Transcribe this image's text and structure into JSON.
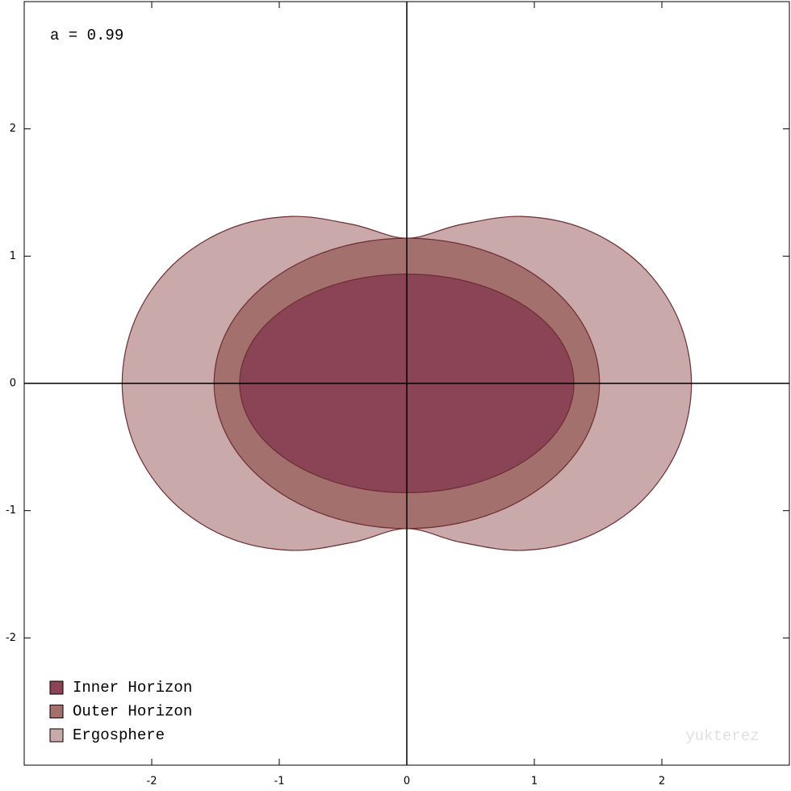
{
  "chart_data": {
    "type": "region",
    "annotation": "a = 0.99",
    "watermark": "yukterez",
    "xlim": [
      -3,
      3
    ],
    "ylim": [
      -3,
      3
    ],
    "xticks": [
      -2,
      -1,
      0,
      1,
      2
    ],
    "yticks": [
      -2,
      -1,
      0,
      1,
      2
    ],
    "legend": "lower left",
    "series": [
      {
        "name": "Ergosphere",
        "color": "#c9a9a9",
        "x": [
          2.232,
          2.127,
          1.832,
          1.399,
          0.905,
          0.421,
          0,
          -0.421,
          -0.905,
          -1.399,
          -1.832,
          -2.127,
          -2.232,
          -2.127,
          -1.832,
          -1.399,
          -0.905,
          -0.421,
          0,
          0.421,
          0.905,
          1.399,
          1.832,
          2.127
        ],
        "y": [
          0,
          0.509,
          0.934,
          1.212,
          1.312,
          1.248,
          1.141,
          1.248,
          1.312,
          1.212,
          0.934,
          0.509,
          0,
          -0.509,
          -0.934,
          -1.212,
          -1.312,
          -1.248,
          -1.141,
          -1.248,
          -1.312,
          -1.212,
          -0.934,
          -0.509
        ]
      },
      {
        "name": "Outer Horizon",
        "color": "#a4706e",
        "x": [
          1.511,
          1.46,
          1.309,
          1.068,
          0.756,
          0.391,
          0,
          -0.391,
          -0.756,
          -1.068,
          -1.309,
          -1.46,
          -1.511,
          -1.46,
          -1.309,
          -1.068,
          -0.756,
          -0.391,
          0,
          0.391,
          0.756,
          1.068,
          1.309,
          1.46
        ],
        "y": [
          0,
          0.295,
          0.571,
          0.807,
          0.988,
          1.102,
          1.141,
          1.102,
          0.988,
          0.807,
          0.571,
          0.295,
          0,
          -0.295,
          -0.571,
          -0.807,
          -0.988,
          -1.102,
          -1.141,
          -1.102,
          -0.988,
          -0.807,
          -0.571,
          -0.295
        ]
      },
      {
        "name": "Inner Horizon",
        "color": "#8a4455",
        "x": [
          1.311,
          1.266,
          1.135,
          0.927,
          0.656,
          0.339,
          0,
          -0.339,
          -0.656,
          -0.927,
          -1.135,
          -1.266,
          -1.311,
          -1.266,
          -1.135,
          -0.927,
          -0.656,
          -0.339,
          0,
          0.339,
          0.656,
          0.927,
          1.135,
          1.266
        ],
        "y": [
          0,
          0.222,
          0.43,
          0.607,
          0.744,
          0.83,
          0.859,
          0.83,
          0.744,
          0.607,
          0.43,
          0.222,
          0,
          -0.222,
          -0.43,
          -0.607,
          -0.744,
          -0.83,
          -0.859,
          -0.83,
          -0.744,
          -0.607,
          -0.43,
          -0.222
        ]
      }
    ]
  }
}
